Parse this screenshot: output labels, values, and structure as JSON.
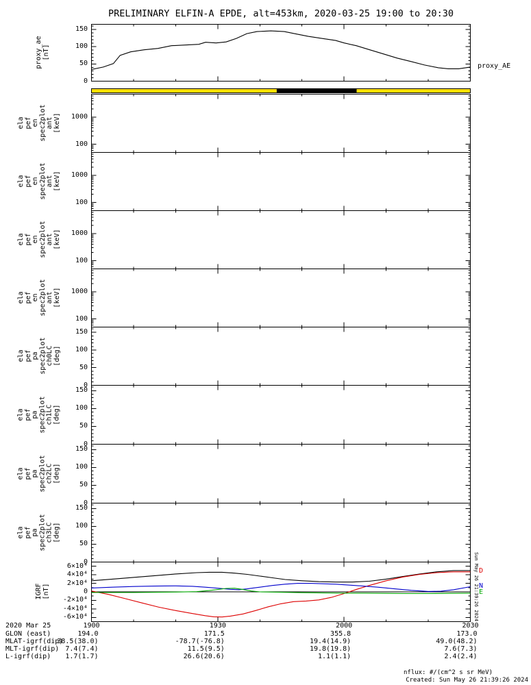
{
  "title": "PRELIMINARY ELFIN-A EPDE, alt=453km, 2020-03-25 19:00 to 20:30",
  "colors": {
    "axis": "#000000",
    "bar_yellow": "#ffe000",
    "bar_black": "#000000",
    "igrf_b": "#000000",
    "igrf_d": "#dd0000",
    "igrf_n": "#0000cc",
    "igrf_e": "#00aa00"
  },
  "xaxis": {
    "range_minutes": [
      0,
      90
    ],
    "tick_values": [
      0,
      30,
      60,
      90
    ],
    "tick_labels": [
      "1900",
      "1930",
      "2000",
      "2030"
    ],
    "minor_step_minutes": 10
  },
  "chart_data": [
    {
      "id": "proxy_ae",
      "type": "line",
      "yscale": "linear",
      "ylim": [
        0,
        165
      ],
      "y_minor_step": 10,
      "ylabel_lines": [
        "proxy_ae",
        "[nT]"
      ],
      "ytick_values": [
        0,
        50,
        100,
        150
      ],
      "ytick_labels": [
        "0",
        "50",
        "100",
        "150"
      ],
      "right_label": "proxy_AE",
      "series": [
        {
          "name": "proxy_AE",
          "color": "#000000",
          "x": [
            0,
            2.8,
            5.2,
            6.8,
            9.3,
            12.5,
            15.8,
            19,
            22.3,
            25.5,
            27.1,
            29.6,
            32,
            34.4,
            36.9,
            39.3,
            42.6,
            45.8,
            48.2,
            51.5,
            54.7,
            58,
            60,
            62.9,
            66.1,
            69.4,
            72.6,
            75.9,
            79.1,
            82.4,
            84.8,
            87.2,
            90
          ],
          "y": [
            34,
            41,
            51,
            75,
            85,
            91,
            95,
            103,
            105,
            107,
            113,
            111,
            114,
            124,
            138,
            144,
            146,
            144,
            138,
            130,
            124,
            118,
            111,
            103,
            91,
            79,
            67,
            57,
            47,
            39,
            36,
            36,
            41
          ]
        }
      ]
    },
    {
      "id": "position_bar",
      "type": "interval-bar",
      "segments": [
        {
          "t0": 0,
          "t1": 44,
          "color": "#ffe000"
        },
        {
          "t0": 44,
          "t1": 63,
          "color": "#000000"
        },
        {
          "t0": 63,
          "t1": 90,
          "color": "#ffe000"
        }
      ]
    },
    {
      "id": "spec_ant_0",
      "type": "spectrogram",
      "yscale": "log",
      "ylim": [
        50,
        7000
      ],
      "ylabel_lines": [
        "ela",
        "pef",
        "en",
        "spec2plot",
        "ant",
        "[keV]"
      ],
      "ytick_values": [
        1000,
        100
      ],
      "ytick_labels": [
        "1000",
        "100"
      ],
      "series": []
    },
    {
      "id": "spec_ant_1",
      "type": "spectrogram",
      "yscale": "log",
      "ylim": [
        50,
        7000
      ],
      "ylabel_lines": [
        "ela",
        "pef",
        "en",
        "spec2plot",
        "ant",
        "[keV]"
      ],
      "ytick_values": [
        1000,
        100
      ],
      "ytick_labels": [
        "1000",
        "100"
      ],
      "series": []
    },
    {
      "id": "spec_ant_2",
      "type": "spectrogram",
      "yscale": "log",
      "ylim": [
        50,
        7000
      ],
      "ylabel_lines": [
        "ela",
        "pef",
        "en",
        "spec2plot",
        "ant",
        "[keV]"
      ],
      "ytick_values": [
        1000,
        100
      ],
      "ytick_labels": [
        "1000",
        "100"
      ],
      "series": []
    },
    {
      "id": "spec_ant_3",
      "type": "spectrogram",
      "yscale": "log",
      "ylim": [
        50,
        7000
      ],
      "ylabel_lines": [
        "ela",
        "pef",
        "en",
        "spec2plot",
        "ant",
        "[keV]"
      ],
      "ytick_values": [
        1000,
        100
      ],
      "ytick_labels": [
        "1000",
        "100"
      ],
      "series": []
    },
    {
      "id": "pa_ch0lc",
      "type": "line",
      "yscale": "linear",
      "ylim": [
        0,
        165
      ],
      "y_minor_step": 10,
      "ylabel_lines": [
        "ela",
        "pef",
        "pa",
        "spec2plot",
        "ch0LC",
        "[deg]"
      ],
      "ytick_values": [
        0,
        50,
        100,
        150
      ],
      "ytick_labels": [
        "0",
        "50",
        "100",
        "150"
      ],
      "series": []
    },
    {
      "id": "pa_ch1lc",
      "type": "line",
      "yscale": "linear",
      "ylim": [
        0,
        165
      ],
      "y_minor_step": 10,
      "ylabel_lines": [
        "ela",
        "pef",
        "pa",
        "spec2plot",
        "ch1LC",
        "[deg]"
      ],
      "ytick_values": [
        0,
        50,
        100,
        150
      ],
      "ytick_labels": [
        "0",
        "50",
        "100",
        "150"
      ],
      "series": []
    },
    {
      "id": "pa_ch2lc",
      "type": "line",
      "yscale": "linear",
      "ylim": [
        0,
        165
      ],
      "y_minor_step": 10,
      "ylabel_lines": [
        "ela",
        "pef",
        "pa",
        "spec2plot",
        "ch2LC",
        "[deg]"
      ],
      "ytick_values": [
        0,
        50,
        100,
        150
      ],
      "ytick_labels": [
        "0",
        "50",
        "100",
        "150"
      ],
      "series": []
    },
    {
      "id": "pa_ch3lc",
      "type": "line",
      "yscale": "linear",
      "ylim": [
        0,
        165
      ],
      "y_minor_step": 10,
      "ylabel_lines": [
        "ela",
        "pef",
        "pa",
        "spec2plot",
        "ch3LC",
        "[deg]"
      ],
      "ytick_values": [
        0,
        50,
        100,
        150
      ],
      "ytick_labels": [
        "0",
        "50",
        "100",
        "150"
      ],
      "series": []
    },
    {
      "id": "igrf",
      "type": "line",
      "yscale": "linear",
      "ylim": [
        -70000,
        70000
      ],
      "y_minor_step": 10000,
      "zero_line": true,
      "ylabel_lines": [
        "IGRF",
        "[nT]"
      ],
      "ytick_values": [
        60000,
        40000,
        20000,
        0,
        -20000,
        -40000,
        -60000
      ],
      "ytick_labels": [
        "6×10⁴",
        "4×10⁴",
        "2×10⁴",
        "0",
        "-2×10⁴",
        "-4×10⁴",
        "-6×10⁴"
      ],
      "legend": [
        {
          "label": "D",
          "color": "#dd0000"
        },
        {
          "label": "N",
          "color": "#0000cc"
        },
        {
          "label": "E",
          "color": "#00aa00"
        }
      ],
      "series": [
        {
          "name": "B",
          "color": "#000000",
          "x": [
            0,
            5,
            10,
            15,
            20,
            25,
            28,
            31,
            34,
            37,
            40,
            43,
            46,
            50,
            54,
            58,
            62,
            66,
            70,
            74,
            78,
            82,
            86,
            90
          ],
          "y": [
            26000,
            30000,
            34000,
            38000,
            42000,
            45000,
            46000,
            46000,
            44000,
            41000,
            37000,
            33000,
            29000,
            26000,
            24000,
            23000,
            23000,
            25000,
            30000,
            36000,
            42000,
            47000,
            50000,
            50000
          ]
        },
        {
          "name": "D",
          "color": "#dd0000",
          "x": [
            0,
            4,
            8,
            12,
            16,
            20,
            24,
            27,
            29,
            31,
            33,
            36,
            39,
            42,
            45,
            48,
            51,
            54,
            57,
            60,
            63,
            66,
            70,
            74,
            78,
            82,
            86,
            90
          ],
          "y": [
            2000,
            -6000,
            -16000,
            -26000,
            -36000,
            -44000,
            -51000,
            -56000,
            -58500,
            -59000,
            -57000,
            -52000,
            -44000,
            -35000,
            -28000,
            -23000,
            -21500,
            -19000,
            -13000,
            -4000,
            6000,
            15000,
            26000,
            35000,
            41000,
            45000,
            47000,
            47000
          ]
        },
        {
          "name": "N",
          "color": "#0000cc",
          "x": [
            0,
            5,
            10,
            15,
            20,
            24,
            27,
            30,
            33,
            35,
            37,
            40,
            43,
            46,
            49,
            52,
            55,
            58,
            61,
            64,
            68,
            72,
            76,
            80,
            83,
            86,
            90
          ],
          "y": [
            9000,
            11000,
            12500,
            13500,
            14000,
            13000,
            11000,
            8500,
            6000,
            5000,
            7000,
            11000,
            15000,
            18000,
            20000,
            20000,
            19000,
            18000,
            16000,
            14000,
            11000,
            7000,
            3500,
            1000,
            1500,
            5000,
            12000
          ]
        },
        {
          "name": "E",
          "color": "#00aa00",
          "x": [
            0,
            10,
            20,
            25,
            28,
            30,
            32,
            34,
            36,
            38,
            40,
            45,
            50,
            55,
            60,
            65,
            70,
            75,
            80,
            85,
            90
          ],
          "y": [
            -1500,
            -1500,
            -500,
            500,
            3000,
            5500,
            8000,
            8500,
            5500,
            2000,
            0,
            -1000,
            -2000,
            -2500,
            -3000,
            -3000,
            -3500,
            -4000,
            -4000,
            -3500,
            -3000
          ]
        }
      ]
    }
  ],
  "ephemeris": {
    "date_label": "2020 Mar 25",
    "rows": [
      {
        "label": "GLON (east)",
        "values": [
          "194.0",
          "171.5",
          "355.8",
          "173.0"
        ]
      },
      {
        "label": "MLAT-igrf(dip)",
        "values": [
          "38.5(38.0)",
          "-78.7(-76.8)",
          "19.4(14.9)",
          "49.0(48.2)"
        ]
      },
      {
        "label": "MLT-igrf(dip)",
        "values": [
          "7.4(7.4)",
          "11.5(9.5)",
          "19.8(19.8)",
          "7.6(7.3)"
        ]
      },
      {
        "label": "L-igrf(dip)",
        "values": [
          "1.7(1.7)",
          "26.6(20.6)",
          "1.1(1.1)",
          "2.4(2.4)"
        ]
      }
    ]
  },
  "footer": {
    "nflux": "nflux: #/(cm^2 s sr MeV)",
    "created": "Created: Sun May 26 21:39:26 2024"
  },
  "side_timestamp": "Sun May 26 21:39:26 2024"
}
